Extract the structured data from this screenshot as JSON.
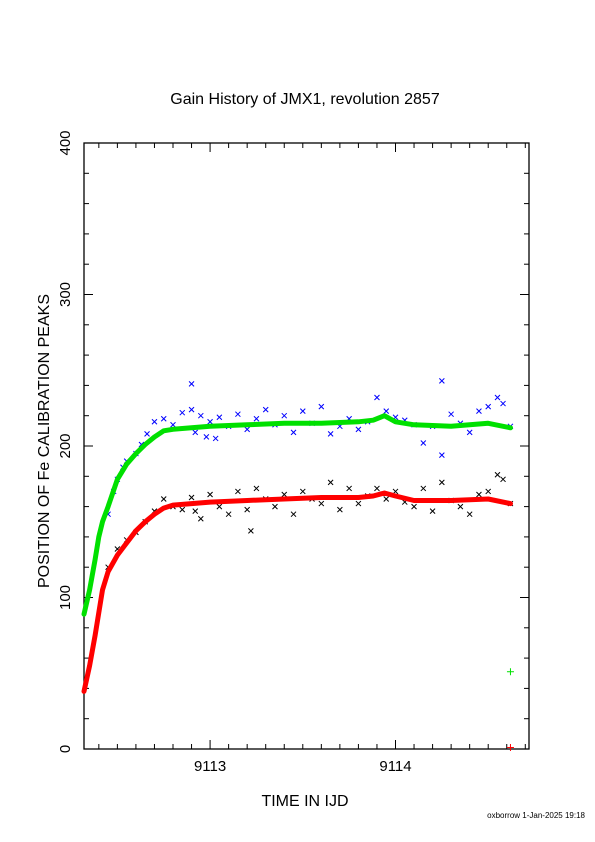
{
  "chart_data": {
    "type": "scatter",
    "title": "Gain History of JMX1, revolution 2857",
    "xlabel": "TIME IN IJD",
    "ylabel": "POSITION OF Fe CALIBRATION PEAKS",
    "xlim": [
      9112.32,
      9114.72
    ],
    "ylim": [
      0,
      400
    ],
    "x_ticks": [
      "9113",
      "9114"
    ],
    "y_ticks": [
      "0",
      "100",
      "200",
      "300",
      "400"
    ],
    "grid": false,
    "legend": "none",
    "series": [
      {
        "marker": "x",
        "color": "#0000ff",
        "points": [
          [
            9112.45,
            155
          ],
          [
            9112.48,
            170
          ],
          [
            9112.5,
            178
          ],
          [
            9112.53,
            186
          ],
          [
            9112.55,
            190
          ],
          [
            9112.6,
            195
          ],
          [
            9112.63,
            201
          ],
          [
            9112.66,
            208
          ],
          [
            9112.7,
            216
          ],
          [
            9112.75,
            218
          ],
          [
            9112.8,
            214
          ],
          [
            9112.85,
            222
          ],
          [
            9112.9,
            224
          ],
          [
            9112.9,
            241
          ],
          [
            9112.92,
            209
          ],
          [
            9112.95,
            220
          ],
          [
            9112.98,
            206
          ],
          [
            9113.0,
            216
          ],
          [
            9113.03,
            205
          ],
          [
            9113.05,
            219
          ],
          [
            9113.1,
            213
          ],
          [
            9113.15,
            221
          ],
          [
            9113.2,
            211
          ],
          [
            9113.25,
            218
          ],
          [
            9113.3,
            224
          ],
          [
            9113.35,
            214
          ],
          [
            9113.4,
            220
          ],
          [
            9113.45,
            209
          ],
          [
            9113.5,
            223
          ],
          [
            9113.55,
            215
          ],
          [
            9113.6,
            226
          ],
          [
            9113.65,
            208
          ],
          [
            9113.7,
            213
          ],
          [
            9113.75,
            218
          ],
          [
            9113.8,
            211
          ],
          [
            9113.85,
            216
          ],
          [
            9113.9,
            232
          ],
          [
            9113.95,
            223
          ],
          [
            9114.0,
            219
          ],
          [
            9114.05,
            217
          ],
          [
            9114.1,
            214
          ],
          [
            9114.15,
            202
          ],
          [
            9114.2,
            213
          ],
          [
            9114.25,
            194
          ],
          [
            9114.25,
            243
          ],
          [
            9114.3,
            221
          ],
          [
            9114.35,
            215
          ],
          [
            9114.4,
            209
          ],
          [
            9114.45,
            223
          ],
          [
            9114.5,
            226
          ],
          [
            9114.55,
            232
          ],
          [
            9114.58,
            228
          ],
          [
            9114.62,
            213
          ]
        ]
      },
      {
        "marker": "x",
        "color": "#000000",
        "points": [
          [
            9112.45,
            120
          ],
          [
            9112.5,
            132
          ],
          [
            9112.55,
            138
          ],
          [
            9112.6,
            143
          ],
          [
            9112.65,
            150
          ],
          [
            9112.7,
            157
          ],
          [
            9112.75,
            165
          ],
          [
            9112.8,
            160
          ],
          [
            9112.85,
            158
          ],
          [
            9112.9,
            166
          ],
          [
            9112.92,
            157
          ],
          [
            9112.95,
            152
          ],
          [
            9113.0,
            168
          ],
          [
            9113.05,
            160
          ],
          [
            9113.1,
            155
          ],
          [
            9113.15,
            170
          ],
          [
            9113.2,
            158
          ],
          [
            9113.22,
            144
          ],
          [
            9113.25,
            172
          ],
          [
            9113.3,
            165
          ],
          [
            9113.35,
            160
          ],
          [
            9113.4,
            168
          ],
          [
            9113.45,
            155
          ],
          [
            9113.5,
            170
          ],
          [
            9113.55,
            165
          ],
          [
            9113.6,
            162
          ],
          [
            9113.65,
            176
          ],
          [
            9113.7,
            158
          ],
          [
            9113.75,
            172
          ],
          [
            9113.8,
            162
          ],
          [
            9113.85,
            167
          ],
          [
            9113.9,
            172
          ],
          [
            9113.95,
            165
          ],
          [
            9114.0,
            170
          ],
          [
            9114.05,
            163
          ],
          [
            9114.1,
            160
          ],
          [
            9114.15,
            172
          ],
          [
            9114.2,
            157
          ],
          [
            9114.25,
            176
          ],
          [
            9114.3,
            164
          ],
          [
            9114.35,
            160
          ],
          [
            9114.4,
            155
          ],
          [
            9114.45,
            168
          ],
          [
            9114.5,
            170
          ],
          [
            9114.55,
            181
          ],
          [
            9114.58,
            178
          ],
          [
            9114.62,
            162
          ]
        ]
      },
      {
        "marker": "line",
        "color": "#00e000",
        "points": [
          [
            9112.32,
            89
          ],
          [
            9112.35,
            105
          ],
          [
            9112.38,
            125
          ],
          [
            9112.4,
            140
          ],
          [
            9112.42,
            150
          ],
          [
            9112.45,
            160
          ],
          [
            9112.5,
            178
          ],
          [
            9112.55,
            188
          ],
          [
            9112.6,
            195
          ],
          [
            9112.65,
            201
          ],
          [
            9112.7,
            206
          ],
          [
            9112.75,
            210
          ],
          [
            9112.8,
            211
          ],
          [
            9112.9,
            212
          ],
          [
            9113.0,
            213
          ],
          [
            9113.2,
            214
          ],
          [
            9113.4,
            215
          ],
          [
            9113.6,
            215
          ],
          [
            9113.8,
            216
          ],
          [
            9113.88,
            217
          ],
          [
            9113.94,
            220
          ],
          [
            9114.0,
            216
          ],
          [
            9114.1,
            214
          ],
          [
            9114.3,
            213
          ],
          [
            9114.5,
            215
          ],
          [
            9114.62,
            212
          ]
        ]
      },
      {
        "marker": "line",
        "color": "#ff0000",
        "points": [
          [
            9112.32,
            38
          ],
          [
            9112.35,
            55
          ],
          [
            9112.38,
            75
          ],
          [
            9112.4,
            90
          ],
          [
            9112.42,
            105
          ],
          [
            9112.45,
            117
          ],
          [
            9112.5,
            128
          ],
          [
            9112.55,
            136
          ],
          [
            9112.6,
            144
          ],
          [
            9112.65,
            150
          ],
          [
            9112.7,
            155
          ],
          [
            9112.75,
            159
          ],
          [
            9112.8,
            161
          ],
          [
            9112.9,
            162
          ],
          [
            9113.0,
            163
          ],
          [
            9113.2,
            164
          ],
          [
            9113.4,
            165
          ],
          [
            9113.6,
            166
          ],
          [
            9113.8,
            166
          ],
          [
            9113.88,
            167
          ],
          [
            9113.94,
            169
          ],
          [
            9114.0,
            167
          ],
          [
            9114.1,
            164
          ],
          [
            9114.3,
            164
          ],
          [
            9114.5,
            165
          ],
          [
            9114.62,
            162
          ]
        ]
      },
      {
        "marker": "+",
        "color": "#00e000",
        "points": [
          [
            9114.62,
            51
          ]
        ]
      },
      {
        "marker": "+",
        "color": "#ff0000",
        "points": [
          [
            9114.62,
            1
          ]
        ]
      }
    ]
  },
  "footer": "oxborrow 1-Jan-2025 19:18"
}
